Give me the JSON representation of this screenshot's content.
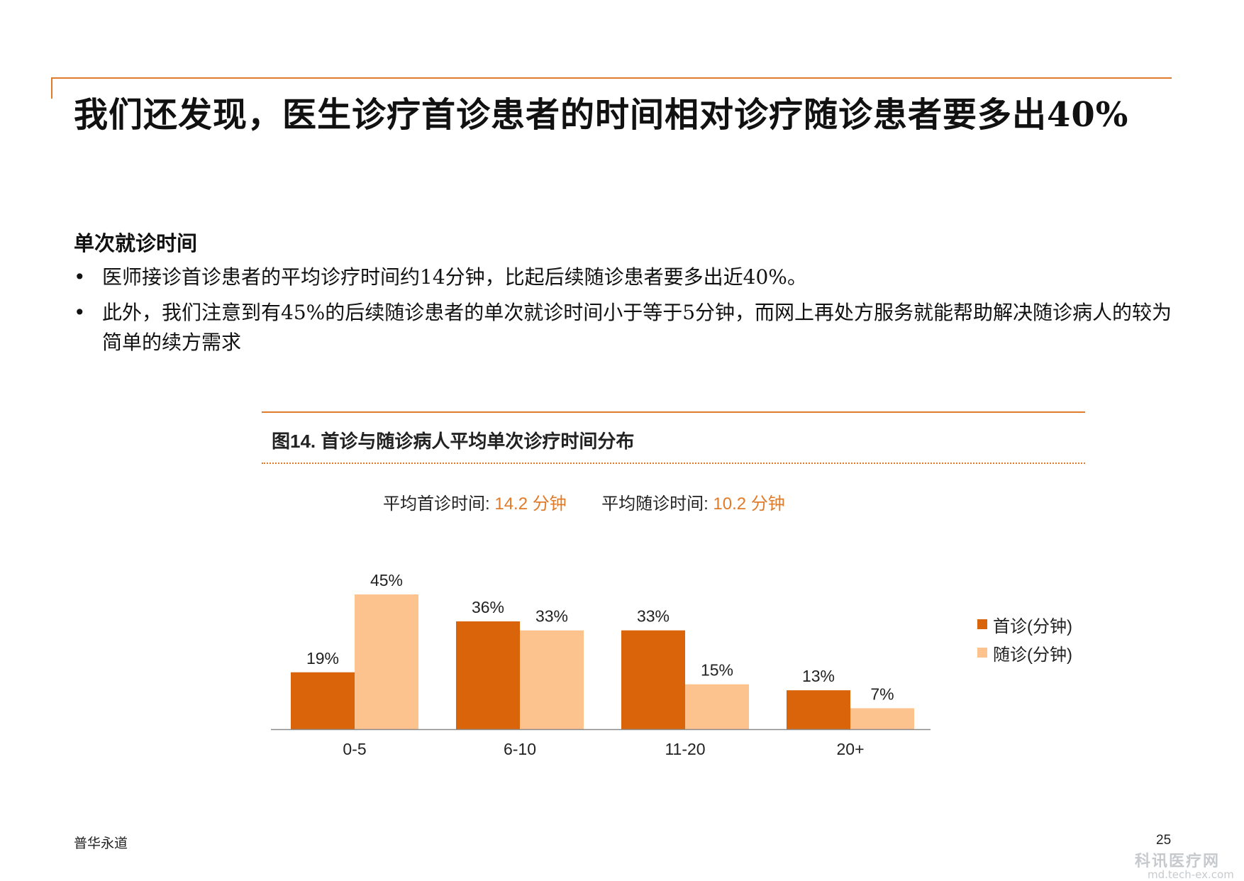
{
  "slide": {
    "title": "我们还发现，医生诊疗首诊患者的时间相对诊疗随诊患者要多出40%",
    "section_heading": "单次就诊时间",
    "bullets": [
      "医师接诊首诊患者的平均诊疗时间约14分钟，比起后续随诊患者要多出近40%。",
      "此外，我们注意到有45%的后续随诊患者的单次就诊时间小于等于5分钟，而网上再处方服务就能帮助解决随诊病人的较为简单的续方需求"
    ],
    "bullet_marker": "•",
    "footer_brand": "普华永道",
    "page_number": "25",
    "watermark": {
      "text": "科讯医疗网",
      "url": "md.tech-ex.com"
    }
  },
  "figure": {
    "title": "图14. 首诊与随诊病人平均单次诊疗时间分布",
    "avg_first_label": "平均首诊时间:",
    "avg_first_value": "14.2 分钟",
    "avg_follow_label": "平均随诊时间:",
    "avg_follow_value": "10.2 分钟"
  },
  "colors": {
    "accent": "#e07b2a",
    "series_first": "#d9640a",
    "series_follow": "#fcc38f"
  },
  "chart_data": {
    "type": "bar",
    "categories": [
      "0-5",
      "6-10",
      "11-20",
      "20+"
    ],
    "series": [
      {
        "name": "首诊(分钟)",
        "values": [
          19,
          36,
          33,
          13
        ],
        "labels": [
          "19%",
          "36%",
          "33%",
          "13%"
        ]
      },
      {
        "name": "随诊(分钟)",
        "values": [
          45,
          33,
          15,
          7
        ],
        "labels": [
          "45%",
          "33%",
          "15%",
          "7%"
        ]
      }
    ],
    "ylim": [
      0,
      45
    ],
    "legend": "right",
    "grid": false
  }
}
